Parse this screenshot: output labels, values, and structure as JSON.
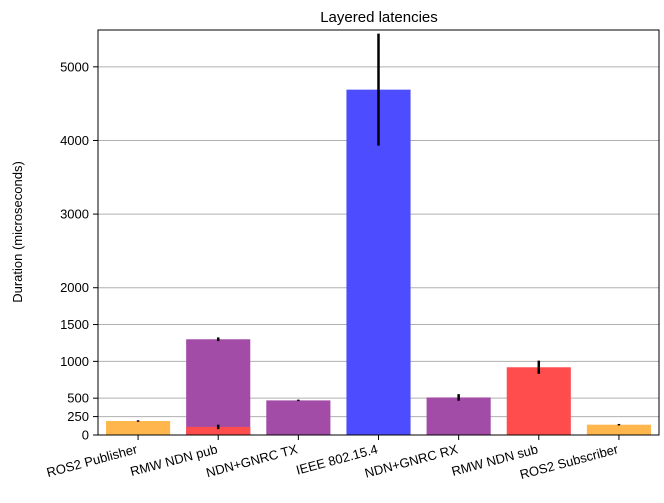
{
  "chart_data": {
    "type": "bar",
    "title": "Layered latencies",
    "xlabel": "",
    "ylabel": "Duration (microseconds)",
    "ylim": [
      0,
      5500
    ],
    "yticks": [
      0,
      250,
      500,
      1000,
      1500,
      2000,
      3000,
      4000,
      5000
    ],
    "grid": true,
    "categories": [
      "ROS2 Publisher",
      "RMW NDN pub",
      "NDN+GNRC TX",
      "IEEE 802.15.4",
      "NDN+GNRC RX",
      "RMW NDN sub",
      "ROS2 Subscriber"
    ],
    "bars": [
      {
        "category": "ROS2 Publisher",
        "value": 190,
        "error": 10,
        "color": "#ffb74d"
      },
      {
        "category": "RMW NDN pub",
        "value": 1300,
        "error": 25,
        "color": "#a24ca8"
      },
      {
        "category": "RMW NDN pub",
        "value": 110,
        "error": 30,
        "color": "#ff4d4d"
      },
      {
        "category": "NDN+GNRC TX",
        "value": 470,
        "error": 10,
        "color": "#a24ca8"
      },
      {
        "category": "IEEE 802.15.4",
        "value": 4690,
        "error": 760,
        "color": "#4d4dff"
      },
      {
        "category": "NDN+GNRC RX",
        "value": 510,
        "error": 45,
        "color": "#a24ca8"
      },
      {
        "category": "RMW NDN sub",
        "value": 920,
        "error": 90,
        "color": "#ff4d4d"
      },
      {
        "category": "ROS2 Subscriber",
        "value": 140,
        "error": 10,
        "color": "#ffb74d"
      }
    ]
  }
}
